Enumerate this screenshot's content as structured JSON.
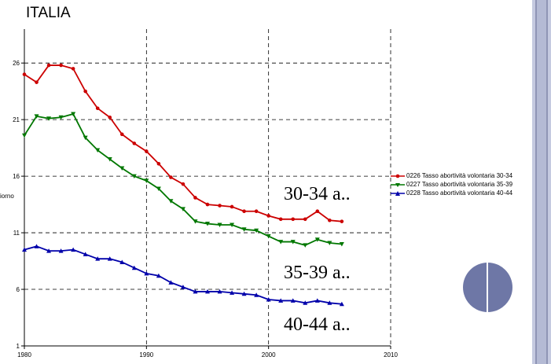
{
  "chart_data": {
    "type": "line",
    "title": "ITALIA",
    "ylabel_fragment": "iorno",
    "x_ticks": [
      "1980",
      "1990",
      "2000",
      "2010"
    ],
    "y_ticks": [
      "1",
      "6",
      "11",
      "16",
      "21",
      "26"
    ],
    "xlim": [
      1980,
      2010
    ],
    "ylim": [
      1,
      29
    ],
    "grid": true,
    "legend_position": "right",
    "x": [
      1980,
      1981,
      1982,
      1983,
      1984,
      1985,
      1986,
      1987,
      1988,
      1989,
      1990,
      1991,
      1992,
      1993,
      1994,
      1995,
      1996,
      1997,
      1998,
      1999,
      2000,
      2001,
      2002,
      2003,
      2004,
      2005,
      2006
    ],
    "series": [
      {
        "name": "0226 Tasso abortività volontaria 30-34",
        "color": "#cc0000",
        "marker": "circle",
        "values": [
          25.0,
          24.3,
          25.8,
          25.8,
          25.5,
          23.5,
          22.0,
          21.2,
          19.7,
          18.9,
          18.2,
          17.1,
          15.9,
          15.3,
          14.1,
          13.5,
          13.4,
          13.3,
          12.9,
          12.9,
          12.5,
          12.2,
          12.2,
          12.2,
          12.9,
          12.1,
          12.0
        ]
      },
      {
        "name": "0227 Tasso abortività volontaria 35-39",
        "color": "#007700",
        "marker": "triangle-down",
        "values": [
          19.6,
          21.3,
          21.1,
          21.2,
          21.5,
          19.4,
          18.3,
          17.5,
          16.7,
          16.0,
          15.6,
          14.9,
          13.8,
          13.1,
          12.0,
          11.8,
          11.7,
          11.7,
          11.3,
          11.2,
          10.7,
          10.2,
          10.2,
          9.9,
          10.4,
          10.1,
          10.0
        ]
      },
      {
        "name": "0228 Tasso abortività volontaria 40-44",
        "color": "#0000aa",
        "marker": "triangle-up",
        "values": [
          9.5,
          9.8,
          9.4,
          9.4,
          9.5,
          9.1,
          8.7,
          8.7,
          8.4,
          7.9,
          7.4,
          7.2,
          6.6,
          6.2,
          5.8,
          5.8,
          5.8,
          5.7,
          5.6,
          5.5,
          5.1,
          5.0,
          5.0,
          4.8,
          5.0,
          4.8,
          4.7
        ]
      }
    ],
    "annotations": [
      "30-34 a..",
      "35-39 a..",
      "40-44 a.."
    ]
  },
  "colors": {
    "strip": "#c5cae0",
    "circle": "#6e77a6"
  }
}
